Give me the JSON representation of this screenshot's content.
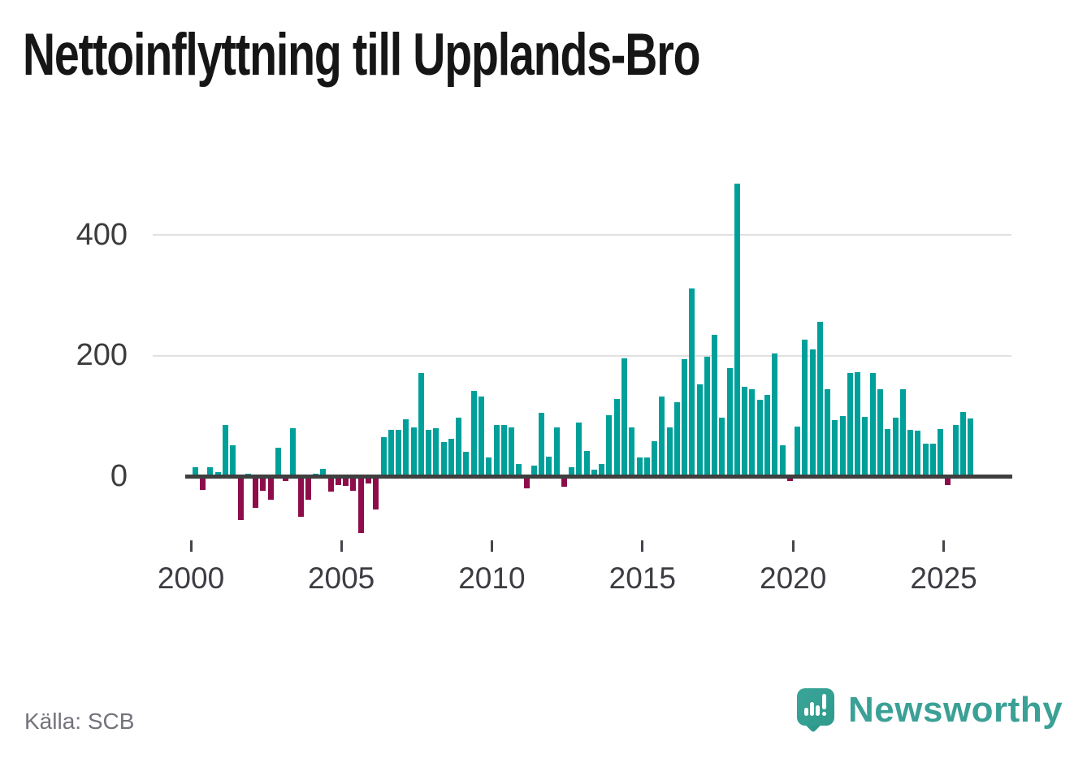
{
  "footer": {
    "source": "Källa: SCB",
    "brand": "Newsworthy"
  },
  "chart_data": {
    "type": "bar",
    "title": "Nettoinflyttning till Upplands-Bro",
    "source": "Källa: SCB",
    "frequency": "quarterly",
    "x_start": "2000-Q1",
    "x_end": "2025-Q4",
    "x_tick_labels": [
      "2000",
      "2005",
      "2010",
      "2015",
      "2020",
      "2025"
    ],
    "y_tick_labels": [
      "400",
      "200",
      "0"
    ],
    "y_gridline_values": [
      400,
      200
    ],
    "ylim": [
      -110,
      510
    ],
    "grid": "horizontal-only",
    "legend": "none",
    "positive_color": "#00a09a",
    "negative_color": "#8e0c4a",
    "series": [
      {
        "name": "Nettoinflyttning",
        "values": [
          16,
          -22,
          16,
          8,
          86,
          52,
          -72,
          5,
          -52,
          -23,
          -38,
          48,
          -7,
          80,
          -66,
          -38,
          5,
          13,
          -25,
          -14,
          -15,
          -24,
          -93,
          -12,
          -55,
          65,
          78,
          78,
          95,
          82,
          172,
          78,
          80,
          57,
          63,
          98,
          41,
          142,
          133,
          31,
          86,
          85,
          81,
          21,
          -19,
          18,
          106,
          33,
          81,
          -17,
          16,
          90,
          42,
          11,
          21,
          101,
          129,
          195,
          81,
          32,
          32,
          58,
          132,
          82,
          123,
          194,
          311,
          153,
          198,
          234,
          98,
          179,
          485,
          149,
          144,
          127,
          135,
          204,
          52,
          -7,
          83,
          226,
          210,
          256,
          145,
          93,
          100,
          171,
          173,
          99,
          172,
          145,
          79,
          97,
          144,
          77,
          76,
          55,
          55,
          79,
          -14,
          85,
          107,
          96
        ]
      }
    ]
  }
}
